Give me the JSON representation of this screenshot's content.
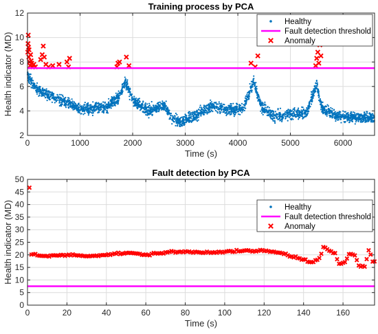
{
  "colors": {
    "healthy": "#0072BD",
    "threshold": "#FF00FF",
    "anomaly": "#FF0000",
    "grid": "#dcdcdc",
    "axis": "#262626"
  },
  "chart_data": [
    {
      "type": "scatter",
      "title": "Training process by PCA",
      "xlabel": "Time (s)",
      "ylabel": "Health indicator (MD)",
      "xlim": [
        0,
        6600
      ],
      "ylim": [
        2,
        12
      ],
      "xticks": [
        0,
        1000,
        2000,
        3000,
        4000,
        5000,
        6000
      ],
      "yticks": [
        2,
        4,
        6,
        8,
        10,
        12
      ],
      "grid": true,
      "legend_position": "top-right",
      "legend": [
        "Healthy",
        "Fault detection threshold",
        "Anomaly"
      ],
      "threshold": 7.5,
      "healthy_profile": [
        [
          0,
          7.0
        ],
        [
          150,
          5.8
        ],
        [
          500,
          5.1
        ],
        [
          800,
          4.6
        ],
        [
          1000,
          4.1
        ],
        [
          1500,
          4.3
        ],
        [
          1750,
          5.2
        ],
        [
          1850,
          6.4
        ],
        [
          2000,
          4.9
        ],
        [
          2300,
          4.0
        ],
        [
          2600,
          4.5
        ],
        [
          2750,
          3.4
        ],
        [
          2900,
          3.1
        ],
        [
          3200,
          3.6
        ],
        [
          3500,
          4.4
        ],
        [
          3800,
          4.1
        ],
        [
          4100,
          4.2
        ],
        [
          4300,
          6.4
        ],
        [
          4450,
          4.3
        ],
        [
          4700,
          3.5
        ],
        [
          5000,
          3.8
        ],
        [
          5300,
          3.8
        ],
        [
          5500,
          6.2
        ],
        [
          5600,
          4.2
        ],
        [
          5900,
          3.6
        ],
        [
          6200,
          3.5
        ],
        [
          6600,
          3.4
        ]
      ],
      "healthy_count": 3000,
      "anomalies": [
        [
          5,
          8.8
        ],
        [
          10,
          9.5
        ],
        [
          15,
          10.2
        ],
        [
          20,
          9.2
        ],
        [
          25,
          8.4
        ],
        [
          30,
          9.0
        ],
        [
          40,
          8.0
        ],
        [
          50,
          7.7
        ],
        [
          60,
          8.6
        ],
        [
          70,
          8.1
        ],
        [
          80,
          7.9
        ],
        [
          100,
          7.6
        ],
        [
          120,
          7.8
        ],
        [
          150,
          7.6
        ],
        [
          250,
          8.2
        ],
        [
          280,
          8.6
        ],
        [
          300,
          9.3
        ],
        [
          320,
          8.4
        ],
        [
          350,
          7.8
        ],
        [
          400,
          7.6
        ],
        [
          480,
          7.7
        ],
        [
          600,
          7.8
        ],
        [
          750,
          8.0
        ],
        [
          780,
          7.6
        ],
        [
          800,
          8.3
        ],
        [
          1700,
          7.6
        ],
        [
          1720,
          7.9
        ],
        [
          1750,
          8.0
        ],
        [
          1880,
          8.4
        ],
        [
          1930,
          7.7
        ],
        [
          4250,
          7.9
        ],
        [
          4330,
          7.6
        ],
        [
          4380,
          8.5
        ],
        [
          5480,
          7.7
        ],
        [
          5500,
          8.3
        ],
        [
          5520,
          8.8
        ],
        [
          5540,
          7.9
        ],
        [
          5560,
          9.4
        ],
        [
          5580,
          8.5
        ]
      ]
    },
    {
      "type": "scatter",
      "title": "Fault detection by PCA",
      "xlabel": "Time (s)",
      "ylabel": "Health indicator (MD)",
      "xlim": [
        0,
        176
      ],
      "ylim": [
        0,
        50
      ],
      "xticks": [
        0,
        20,
        40,
        60,
        80,
        100,
        120,
        140,
        160
      ],
      "yticks": [
        0,
        5,
        10,
        15,
        20,
        25,
        30,
        35,
        40,
        45,
        50
      ],
      "grid": true,
      "legend_position": "top-right",
      "legend": [
        "Healthy",
        "Fault detection threshold",
        "Anomaly"
      ],
      "threshold": 7.5,
      "anomaly_first": [
        1,
        46.7
      ],
      "anomaly_profile": [
        [
          2,
          20.3
        ],
        [
          10,
          19.4
        ],
        [
          20,
          20.0
        ],
        [
          30,
          19.6
        ],
        [
          40,
          20.0
        ],
        [
          50,
          20.8
        ],
        [
          60,
          20.0
        ],
        [
          70,
          21.0
        ],
        [
          80,
          21.2
        ],
        [
          90,
          21.0
        ],
        [
          100,
          21.3
        ],
        [
          110,
          21.5
        ],
        [
          120,
          21.6
        ],
        [
          130,
          20.5
        ],
        [
          135,
          19.2
        ],
        [
          140,
          18.0
        ],
        [
          145,
          17.0
        ],
        [
          148,
          18.5
        ],
        [
          150,
          23.0
        ],
        [
          153,
          21.5
        ],
        [
          156,
          20.2
        ],
        [
          158,
          16.5
        ],
        [
          161,
          17.0
        ],
        [
          163,
          20.6
        ],
        [
          166,
          20.0
        ],
        [
          168,
          16.0
        ],
        [
          171,
          15.4
        ],
        [
          173,
          21.8
        ],
        [
          175,
          17.5
        ]
      ],
      "anomaly_step": 1
    }
  ]
}
